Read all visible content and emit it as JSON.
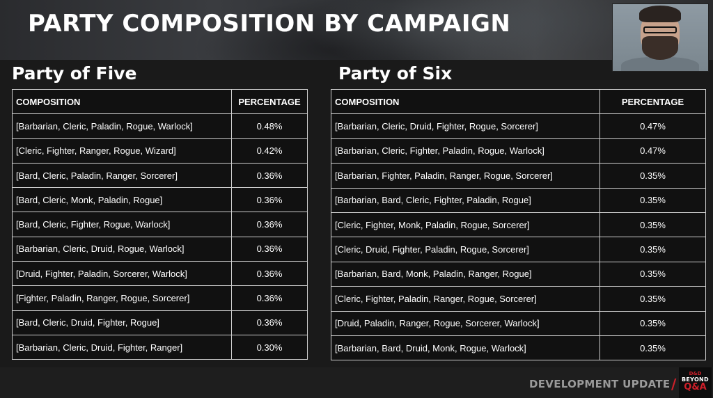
{
  "header": {
    "title": "PARTY COMPOSITION BY CAMPAIGN"
  },
  "party_five": {
    "title": "Party of Five",
    "columns": [
      "COMPOSITION",
      "PERCENTAGE"
    ],
    "rows": [
      {
        "composition": "[Barbarian, Cleric, Paladin, Rogue, Warlock]",
        "percentage": "0.48%"
      },
      {
        "composition": "[Cleric, Fighter, Ranger, Rogue, Wizard]",
        "percentage": "0.42%"
      },
      {
        "composition": "[Bard, Cleric, Paladin, Ranger, Sorcerer]",
        "percentage": "0.36%"
      },
      {
        "composition": "[Bard, Cleric, Monk, Paladin, Rogue]",
        "percentage": "0.36%"
      },
      {
        "composition": "[Bard, Cleric, Fighter, Rogue, Warlock]",
        "percentage": "0.36%"
      },
      {
        "composition": "[Barbarian, Cleric, Druid, Rogue, Warlock]",
        "percentage": "0.36%"
      },
      {
        "composition": "[Druid, Fighter, Paladin, Sorcerer, Warlock]",
        "percentage": "0.36%"
      },
      {
        "composition": "[Fighter, Paladin, Ranger, Rogue, Sorcerer]",
        "percentage": "0.36%"
      },
      {
        "composition": "[Bard, Cleric, Druid, Fighter, Rogue]",
        "percentage": "0.36%"
      },
      {
        "composition": "[Barbarian, Cleric, Druid, Fighter, Ranger]",
        "percentage": "0.30%"
      }
    ]
  },
  "party_six": {
    "title": "Party of Six",
    "columns": [
      "COMPOSITION",
      "PERCENTAGE"
    ],
    "rows": [
      {
        "composition": "[Barbarian, Cleric, Druid, Fighter, Rogue, Sorcerer]",
        "percentage": "0.47%"
      },
      {
        "composition": "[Barbarian, Cleric, Fighter, Paladin, Rogue, Warlock]",
        "percentage": "0.47%"
      },
      {
        "composition": "[Barbarian, Fighter, Paladin, Ranger, Rogue, Sorcerer]",
        "percentage": "0.35%"
      },
      {
        "composition": "[Barbarian, Bard, Cleric, Fighter, Paladin, Rogue]",
        "percentage": "0.35%"
      },
      {
        "composition": "[Cleric, Fighter, Monk, Paladin, Rogue, Sorcerer]",
        "percentage": "0.35%"
      },
      {
        "composition": "[Cleric, Druid, Fighter, Paladin, Rogue, Sorcerer]",
        "percentage": "0.35%"
      },
      {
        "composition": "[Barbarian, Bard, Monk, Paladin, Ranger, Rogue]",
        "percentage": "0.35%"
      },
      {
        "composition": "[Cleric, Fighter, Paladin, Ranger, Rogue, Sorcerer]",
        "percentage": "0.35%"
      },
      {
        "composition": "[Druid, Paladin, Ranger, Rogue, Sorcerer, Warlock]",
        "percentage": "0.35%"
      },
      {
        "composition": "[Barbarian, Bard, Druid, Monk, Rogue, Warlock]",
        "percentage": "0.35%"
      }
    ]
  },
  "footer": {
    "label": "DEVELOPMENT UPDATE",
    "separator": "/",
    "logo": {
      "brand": "D&D",
      "line1": "BEYOND",
      "line2": "Q&A"
    }
  },
  "colors": {
    "background": "#1a1a1a",
    "table_border": "#cfcfcf",
    "accent": "#d0202a",
    "footer_text": "#9a9a9a"
  }
}
